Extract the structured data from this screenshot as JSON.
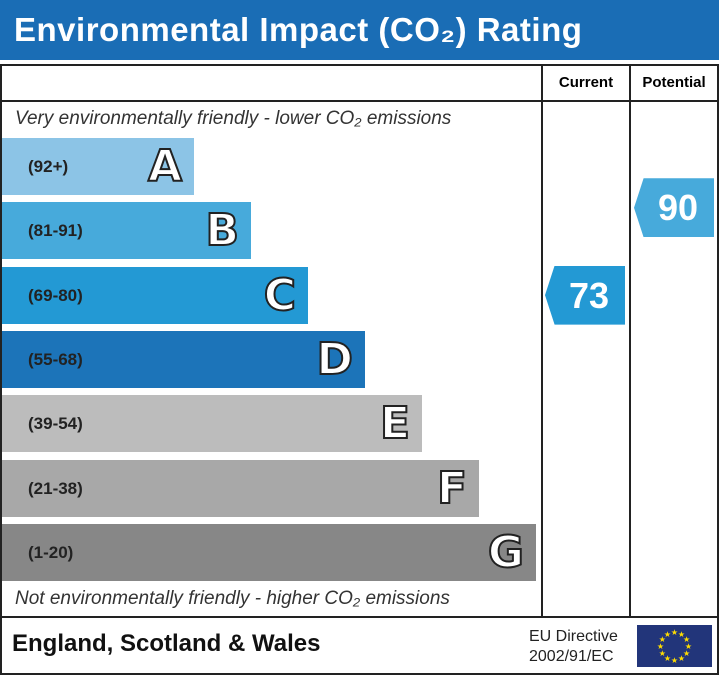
{
  "title": "Environmental Impact (CO₂) Rating",
  "columns": {
    "current": "Current",
    "potential": "Potential"
  },
  "top_note": "Very environmentally friendly - lower CO₂ emissions",
  "bottom_note": "Not environmentally friendly - higher CO₂ emissions",
  "chart_data": {
    "type": "bar",
    "bands": [
      {
        "letter": "A",
        "range": "(92+)",
        "color": "#8cc4e6"
      },
      {
        "letter": "B",
        "range": "(81-91)",
        "color": "#47aadb"
      },
      {
        "letter": "C",
        "range": "(69-80)",
        "color": "#2399d4"
      },
      {
        "letter": "D",
        "range": "(55-68)",
        "color": "#1c74b9"
      },
      {
        "letter": "E",
        "range": "(39-54)",
        "color": "#bcbcbc"
      },
      {
        "letter": "F",
        "range": "(21-38)",
        "color": "#a8a8a8"
      },
      {
        "letter": "G",
        "range": "(1-20)",
        "color": "#878787"
      }
    ],
    "current": {
      "value": 73,
      "band": "C",
      "color": "#2399d4"
    },
    "potential": {
      "value": 90,
      "band": "B",
      "color": "#47aadb"
    }
  },
  "footer": {
    "region": "England, Scotland & Wales",
    "directive_line1": "EU Directive",
    "directive_line2": "2002/91/EC"
  }
}
